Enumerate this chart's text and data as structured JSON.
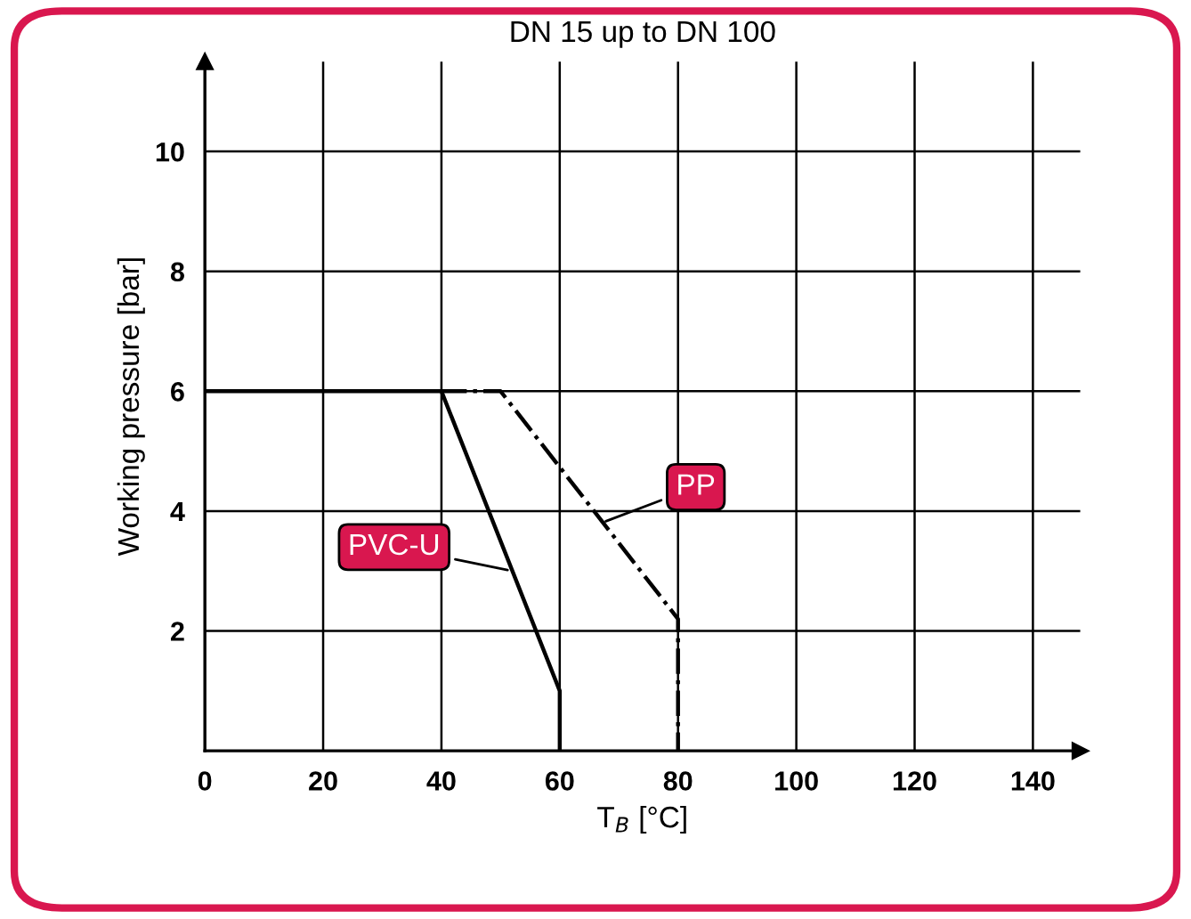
{
  "chart_data": {
    "type": "line",
    "title": "DN 15 up to DN 100",
    "xlabel": "T$_{B}$ [°C]",
    "ylabel": "Working pressure [bar]",
    "xlim": [
      0,
      148
    ],
    "ylim": [
      0,
      11.5
    ],
    "xticks": [
      0,
      20,
      40,
      60,
      80,
      100,
      120,
      140
    ],
    "yticks": [
      2,
      4,
      6,
      8,
      10
    ],
    "grid": true,
    "series": [
      {
        "color": "#000000",
        "line_style": "solid",
        "x": [
          0,
          40,
          60,
          60
        ],
        "values": [
          6,
          6,
          1,
          0
        ]
      },
      {
        "color": "#000000",
        "line_style": "dashdot",
        "x": [
          40,
          50,
          80,
          80
        ],
        "values": [
          6,
          6,
          2.2,
          0
        ]
      }
    ],
    "annotations": [
      {
        "text": "PVC-U",
        "x": 52,
        "y": 3.0
      },
      {
        "text": "PP",
        "x": 67,
        "y": 3.8
      }
    ]
  }
}
